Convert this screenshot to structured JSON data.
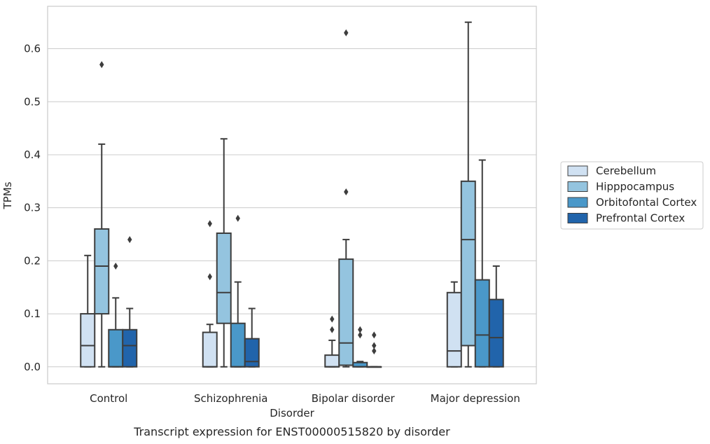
{
  "chart_data": {
    "type": "boxplot",
    "caption": "Transcript expression for ENST00000515820 by disorder",
    "xlabel": "Disorder",
    "ylabel": "TPMs",
    "ylim": [
      -0.032,
      0.68
    ],
    "yticks": [
      0.0,
      0.1,
      0.2,
      0.3,
      0.4,
      0.5,
      0.6
    ],
    "ytick_labels": [
      "0.0",
      "0.1",
      "0.2",
      "0.3",
      "0.4",
      "0.5",
      "0.6"
    ],
    "categories": [
      "Control",
      "Schizophrenia",
      "Bipolar disorder",
      "Major depression"
    ],
    "grid": "horizontal",
    "legend_position": "right",
    "series": [
      {
        "name": "Cerebellum",
        "color": "#d0e1f2",
        "boxes": [
          {
            "whislo": 0.0,
            "q1": 0.0,
            "med": 0.04,
            "q3": 0.1,
            "whishi": 0.21,
            "fliers": []
          },
          {
            "whislo": 0.0,
            "q1": 0.0,
            "med": 0.0,
            "q3": 0.065,
            "whishi": 0.08,
            "fliers": [
              0.17,
              0.27
            ]
          },
          {
            "whislo": 0.0,
            "q1": 0.0,
            "med": 0.0,
            "q3": 0.022,
            "whishi": 0.05,
            "fliers": [
              0.07,
              0.09
            ]
          },
          {
            "whislo": 0.0,
            "q1": 0.0,
            "med": 0.03,
            "q3": 0.14,
            "whishi": 0.16,
            "fliers": []
          }
        ]
      },
      {
        "name": "Hipppocampus",
        "color": "#94c4df",
        "boxes": [
          {
            "whislo": 0.0,
            "q1": 0.1,
            "med": 0.19,
            "q3": 0.26,
            "whishi": 0.42,
            "fliers": [
              0.57
            ]
          },
          {
            "whislo": 0.0,
            "q1": 0.082,
            "med": 0.14,
            "q3": 0.252,
            "whishi": 0.43,
            "fliers": []
          },
          {
            "whislo": 0.0,
            "q1": 0.003,
            "med": 0.045,
            "q3": 0.203,
            "whishi": 0.24,
            "fliers": [
              0.33,
              0.63
            ]
          },
          {
            "whislo": 0.0,
            "q1": 0.04,
            "med": 0.24,
            "q3": 0.35,
            "whishi": 0.65,
            "fliers": []
          }
        ]
      },
      {
        "name": "Orbitofontal Cortex",
        "color": "#4a98c9",
        "boxes": [
          {
            "whislo": 0.0,
            "q1": 0.0,
            "med": 0.0,
            "q3": 0.07,
            "whishi": 0.13,
            "fliers": [
              0.19
            ]
          },
          {
            "whislo": 0.0,
            "q1": 0.0,
            "med": 0.0,
            "q3": 0.082,
            "whishi": 0.16,
            "fliers": [
              0.28
            ]
          },
          {
            "whislo": 0.0,
            "q1": 0.0,
            "med": 0.0,
            "q3": 0.008,
            "whishi": 0.01,
            "fliers": [
              0.06,
              0.07
            ]
          },
          {
            "whislo": 0.0,
            "q1": 0.0,
            "med": 0.06,
            "q3": 0.164,
            "whishi": 0.39,
            "fliers": []
          }
        ]
      },
      {
        "name": "Prefrontal Cortex",
        "color": "#2164ab",
        "boxes": [
          {
            "whislo": 0.0,
            "q1": 0.0,
            "med": 0.04,
            "q3": 0.07,
            "whishi": 0.11,
            "fliers": [
              0.24
            ]
          },
          {
            "whislo": 0.0,
            "q1": 0.0,
            "med": 0.01,
            "q3": 0.053,
            "whishi": 0.11,
            "fliers": []
          },
          {
            "whislo": 0.0,
            "q1": 0.0,
            "med": 0.0,
            "q3": 0.0,
            "whishi": 0.0,
            "fliers": [
              0.03,
              0.04,
              0.06
            ]
          },
          {
            "whislo": 0.0,
            "q1": 0.0,
            "med": 0.055,
            "q3": 0.127,
            "whishi": 0.19,
            "fliers": []
          }
        ]
      }
    ]
  }
}
